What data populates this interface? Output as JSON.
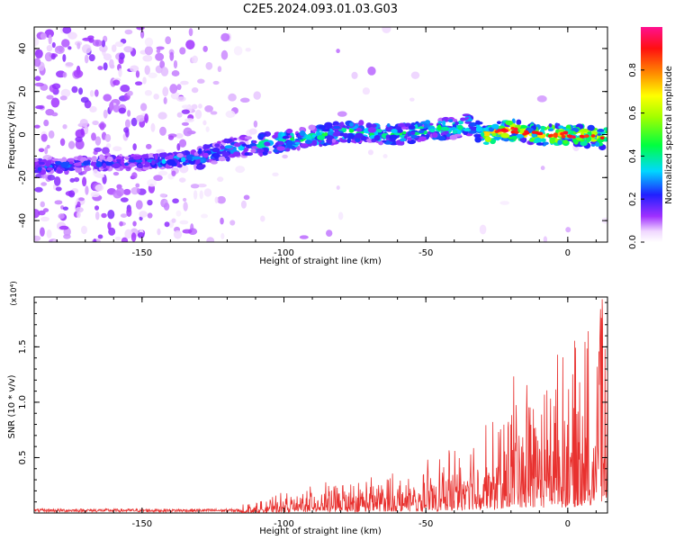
{
  "title": "C2E5.2024.093.01.03.G03",
  "chart_data": [
    {
      "type": "heatmap",
      "xlabel": "Height of straight line (km)",
      "ylabel": "Frequency (Hz)",
      "xlim": [
        -188,
        14
      ],
      "ylim": [
        -50,
        50
      ],
      "xticks": [
        -150,
        -100,
        -50,
        0
      ],
      "yticks": [
        -40,
        -20,
        0,
        20,
        40
      ],
      "colorbar": {
        "label": "Normalized spectral amplitude",
        "range": [
          0,
          1
        ],
        "ticks": [
          0.0,
          0.2,
          0.4,
          0.6,
          0.8
        ]
      },
      "ridge": {
        "x": [
          -188,
          -175,
          -160,
          -150,
          -140,
          -130,
          -120,
          -110,
          -100,
          -90,
          -80,
          -70,
          -60,
          -50,
          -40,
          -35,
          -30,
          -25,
          -20,
          -10,
          0,
          10,
          14
        ],
        "y": [
          -15,
          -14,
          -13,
          -13,
          -12,
          -11,
          -7,
          -5,
          -3,
          -1,
          1,
          1,
          0,
          2,
          3,
          5,
          0,
          1,
          2,
          0,
          0,
          -1,
          -2
        ]
      },
      "grid": false
    },
    {
      "type": "line",
      "xlabel": "Height of straight line (km)",
      "ylabel": "SNR (10 * v/v)",
      "y_multiplier": "(x10⁴)",
      "xlim": [
        -188,
        14
      ],
      "ylim": [
        0,
        1.95
      ],
      "xticks": [
        -150,
        -100,
        -50,
        0
      ],
      "yticks": [
        0.5,
        1.0,
        1.5
      ],
      "series": [
        {
          "color": "#e8312f",
          "envelope": {
            "x": [
              -188,
              -150,
              -120,
              -110,
              -100,
              -90,
              -80,
              -70,
              -60,
              -50,
              -40,
              -30,
              -25,
              -20,
              -15,
              -10,
              -5,
              0,
              5,
              10,
              12,
              14
            ],
            "y": [
              0.02,
              0.02,
              0.04,
              0.07,
              0.12,
              0.17,
              0.2,
              0.22,
              0.25,
              0.3,
              0.4,
              0.55,
              0.55,
              0.85,
              0.9,
              0.85,
              1.0,
              0.95,
              1.05,
              1.2,
              1.4,
              1.1
            ]
          }
        }
      ],
      "grid": false
    }
  ]
}
